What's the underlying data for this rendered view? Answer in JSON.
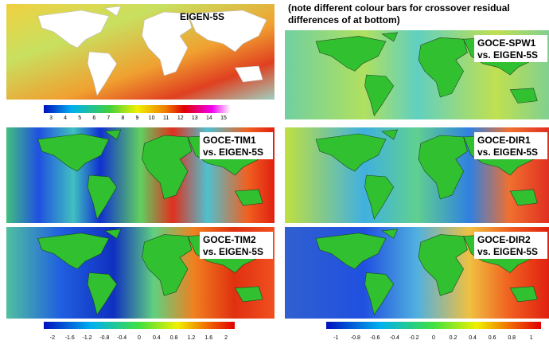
{
  "panels": [
    {
      "title": [
        "EIGEN-5S"
      ]
    },
    {
      "title": [
        "GOCE-TIM1",
        "vs. EIGEN-5S"
      ]
    },
    {
      "title": [
        "GOCE-TIM2",
        "vs. EIGEN-5S"
      ]
    },
    {
      "title": [
        "GOCE-SPW1",
        "vs. EIGEN-5S"
      ]
    },
    {
      "title": [
        "GOCE-DIR1",
        "vs. EIGEN-5S"
      ]
    },
    {
      "title": [
        "GOCE-DIR2",
        "vs. EIGEN-5S"
      ]
    }
  ],
  "note": [
    "(note different colour bars for crossover residual",
    "differences of at bottom)"
  ],
  "colorbars": [
    {
      "ticks": [
        "3",
        "4",
        "5",
        "6",
        "7",
        "8",
        "9",
        "10",
        "11",
        "12",
        "13",
        "14",
        "15"
      ]
    },
    {
      "ticks": [
        "-2",
        "-1.6",
        "-1.2",
        "-0.8",
        "-0.4",
        "0",
        "0.4",
        "0.8",
        "1.2",
        "1.6",
        "2"
      ]
    },
    {
      "ticks": [
        "-1",
        "-0.8",
        "-0.6",
        "-0.4",
        "-0.2",
        "0",
        "0.2",
        "0.4",
        "0.6",
        "0.8",
        "1"
      ]
    }
  ]
}
